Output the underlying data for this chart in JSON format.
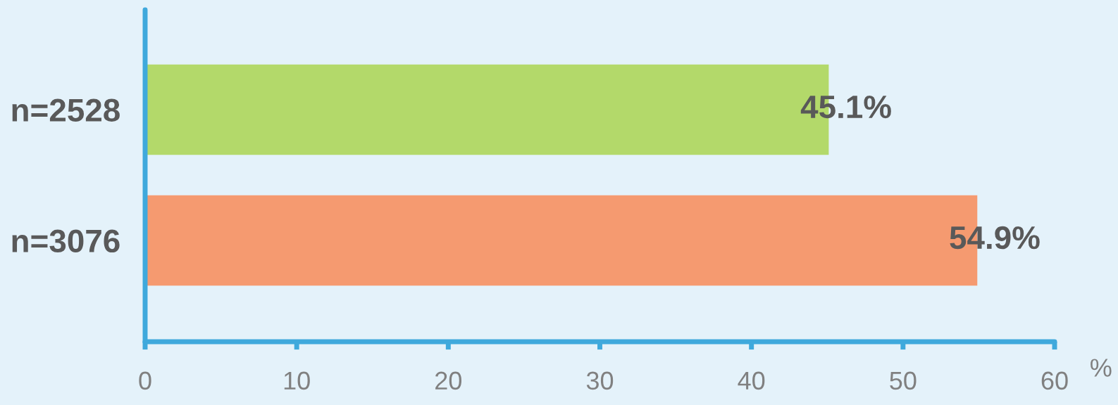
{
  "chart_data": {
    "type": "bar",
    "orientation": "horizontal",
    "categories": [
      "n=2528",
      "n=3076"
    ],
    "values": [
      45.1,
      54.9
    ],
    "colors": [
      "#b3d96a",
      "#f59a70"
    ],
    "value_labels": [
      "45.1%",
      "54.9%"
    ],
    "xlabel": "%",
    "xlim": [
      0,
      60
    ],
    "xticks": [
      0,
      10,
      20,
      30,
      40,
      50,
      60
    ]
  }
}
